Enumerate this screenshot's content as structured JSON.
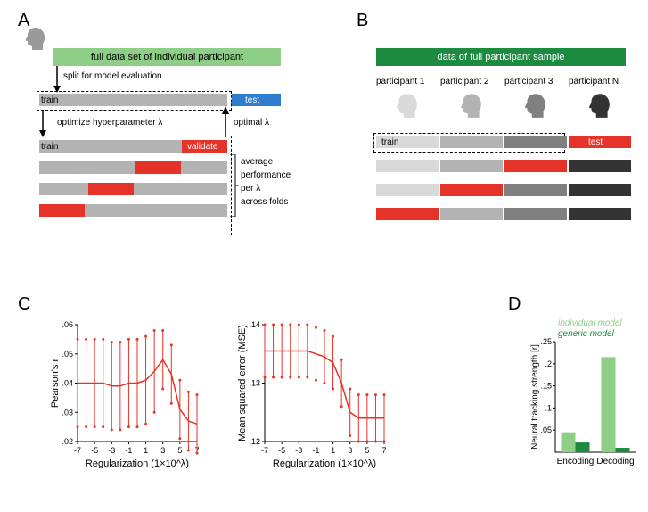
{
  "panelA": {
    "label": "A",
    "header": "full data set of individual participant",
    "header_color": "#8fce86",
    "split_label": "split for model evaluation",
    "train_label": "train",
    "test_label": "test",
    "validate_label": "validate",
    "optimize_label": "optimize hyperparameter λ",
    "optimal_label": "optimal λ",
    "avg_lines": [
      "average",
      "performance",
      "per λ",
      "across folds"
    ],
    "train_color": "#b3b3b3",
    "test_color": "#2f7dd1",
    "validate_color": "#e63329",
    "head_color": "#999999"
  },
  "panelB": {
    "label": "B",
    "header": "data of full participant sample",
    "header_color": "#1c8a3f",
    "participants": [
      "participant 1",
      "participant 2",
      "participant 3",
      "participant N"
    ],
    "head_colors": [
      "#d9d9d9",
      "#b3b3b3",
      "#808080",
      "#333333"
    ],
    "train_label": "train",
    "test_label": "test",
    "test_color": "#e63329",
    "rows": [
      [
        {
          "c": "#d9d9d9"
        },
        {
          "c": "#b3b3b3"
        },
        {
          "c": "#808080"
        },
        {
          "c": "#e63329"
        }
      ],
      [
        {
          "c": "#d9d9d9"
        },
        {
          "c": "#b3b3b3"
        },
        {
          "c": "#e63329"
        },
        {
          "c": "#333333"
        }
      ],
      [
        {
          "c": "#d9d9d9"
        },
        {
          "c": "#e63329"
        },
        {
          "c": "#808080"
        },
        {
          "c": "#333333"
        }
      ],
      [
        {
          "c": "#e63329"
        },
        {
          "c": "#b3b3b3"
        },
        {
          "c": "#808080"
        },
        {
          "c": "#333333"
        }
      ]
    ]
  },
  "panelC": {
    "label": "C",
    "xlabel": "Regularization (1×10^λ)",
    "xticks": [
      "-7",
      "-5",
      "-3",
      "-1",
      "1",
      "3",
      "5",
      "7"
    ],
    "chart1": {
      "ylabel": "Pearson's r",
      "ymin": 0.02,
      "ymax": 0.06,
      "yticks": [
        ".02",
        ".03",
        ".04",
        ".05",
        ".06"
      ],
      "yvals": [
        0.04,
        0.04,
        0.04,
        0.04,
        0.039,
        0.039,
        0.04,
        0.04,
        0.041,
        0.044,
        0.048,
        0.043,
        0.031,
        0.027,
        0.026
      ],
      "err": [
        0.015,
        0.015,
        0.015,
        0.015,
        0.015,
        0.015,
        0.015,
        0.015,
        0.015,
        0.014,
        0.01,
        0.01,
        0.01,
        0.01,
        0.01
      ],
      "color": "#e63329"
    },
    "chart2": {
      "ylabel": "Mean squared error (MSE)",
      "ymin": 0.12,
      "ymax": 0.14,
      "yticks": [
        ".12",
        ".13",
        ".14"
      ],
      "yvals": [
        0.1355,
        0.1355,
        0.1355,
        0.1355,
        0.1355,
        0.1355,
        0.135,
        0.1345,
        0.1335,
        0.13,
        0.125,
        0.124,
        0.124,
        0.124,
        0.124
      ],
      "err": [
        0.0045,
        0.0045,
        0.0045,
        0.0045,
        0.0045,
        0.0045,
        0.0045,
        0.0045,
        0.0045,
        0.004,
        0.004,
        0.004,
        0.004,
        0.004,
        0.004
      ],
      "color": "#e63329"
    }
  },
  "panelD": {
    "label": "D",
    "ylabel": "Neural tracking strength [r]",
    "yticks": [
      ".05",
      ".1",
      ".15",
      ".2",
      ".25"
    ],
    "ymax": 0.25,
    "legend": [
      {
        "label": "individual model",
        "color": "#8fce86"
      },
      {
        "label": "generic model",
        "color": "#1c8a3f"
      }
    ],
    "groups": [
      "Encoding",
      "Decoding"
    ],
    "bars": [
      {
        "group": 0,
        "series": 0,
        "val": 0.045
      },
      {
        "group": 0,
        "series": 1,
        "val": 0.022
      },
      {
        "group": 1,
        "series": 0,
        "val": 0.215
      },
      {
        "group": 1,
        "series": 1,
        "val": 0.01
      }
    ]
  }
}
